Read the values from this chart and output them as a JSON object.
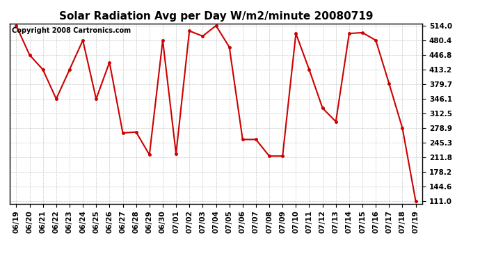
{
  "title": "Solar Radiation Avg per Day W/m2/minute 20080719",
  "copyright": "Copyright 2008 Cartronics.com",
  "labels": [
    "06/19",
    "06/20",
    "06/21",
    "06/22",
    "06/23",
    "06/24",
    "06/25",
    "06/26",
    "06/27",
    "06/28",
    "06/29",
    "06/30",
    "07/01",
    "07/02",
    "07/03",
    "07/04",
    "07/05",
    "07/06",
    "07/07",
    "07/08",
    "07/09",
    "07/10",
    "07/11",
    "07/12",
    "07/13",
    "07/14",
    "07/15",
    "07/16",
    "07/17",
    "07/18",
    "07/19"
  ],
  "values": [
    514.0,
    446.8,
    413.2,
    346.1,
    413.2,
    480.4,
    346.1,
    430.0,
    268.0,
    270.0,
    218.0,
    480.4,
    220.0,
    502.0,
    490.0,
    514.0,
    465.0,
    253.0,
    253.0,
    215.0,
    215.0,
    496.0,
    413.2,
    325.0,
    294.0,
    496.0,
    498.0,
    480.4,
    381.0,
    278.9,
    111.0
  ],
  "line_color": "#cc0000",
  "marker_color": "#cc0000",
  "bg_color": "#ffffff",
  "plot_bg_color": "#ffffff",
  "grid_color": "#bbbbbb",
  "yticks": [
    514.0,
    480.4,
    446.8,
    413.2,
    379.7,
    346.1,
    312.5,
    278.9,
    245.3,
    211.8,
    178.2,
    144.6,
    111.0
  ],
  "ymin": 111.0,
  "ymax": 514.0,
  "title_fontsize": 11,
  "copyright_fontsize": 7,
  "tick_fontsize": 7.5
}
